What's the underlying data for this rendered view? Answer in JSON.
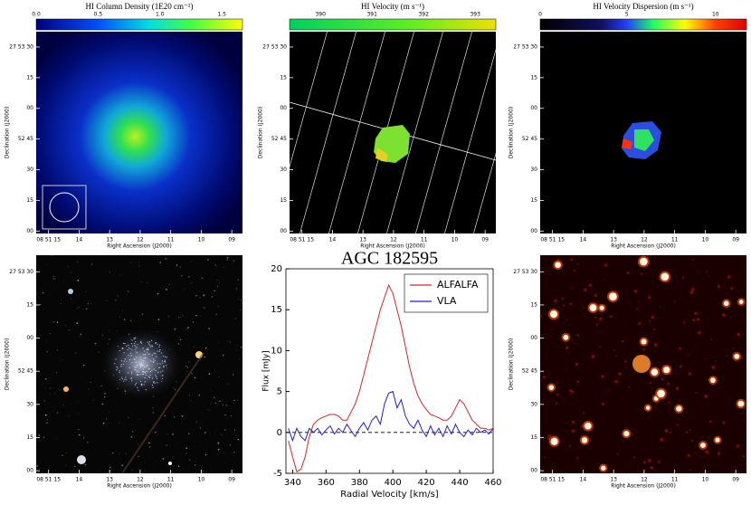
{
  "panels": [
    {
      "title": "HI Column Density (1E20 cm⁻²)",
      "colorbar_ticks": [
        "0.0",
        "0.5",
        "1.0",
        "1.5"
      ]
    },
    {
      "title": "HI Velocity (m s⁻¹)",
      "colorbar_ticks": [
        "390",
        "391",
        "392",
        "393"
      ]
    },
    {
      "title": "HI Velocity Dispersion (m s⁻¹)",
      "colorbar_ticks": [
        "0",
        "5",
        "10"
      ]
    }
  ],
  "sky_axes": {
    "dec_ticks": [
      "27 53 30",
      "15",
      "00",
      "52 45",
      "30",
      "15",
      "00"
    ],
    "ra_ticks": [
      "08 51 15",
      "14",
      "13",
      "12",
      "11",
      "10",
      "09"
    ],
    "ylabel": "Declination (J2000)",
    "xlabel": "Right Ascension (J2000)"
  },
  "chart_data": {
    "type": "line",
    "title": "AGC 182595",
    "xlabel": "Radial Velocity [km/s]",
    "ylabel": "Flux [mJy]",
    "x": [
      337.5,
      340,
      342.5,
      345,
      347.5,
      350,
      352.5,
      355,
      357.5,
      360,
      362.5,
      365,
      367.5,
      370,
      372.5,
      375,
      377.5,
      380,
      382.5,
      385,
      387.5,
      390,
      392.5,
      395,
      397.5,
      400,
      402.5,
      405,
      407.5,
      410,
      412.5,
      415,
      417.5,
      420,
      422.5,
      425,
      427.5,
      430,
      432.5,
      435,
      437.5,
      440,
      442.5,
      445,
      447.5,
      450,
      452.5,
      455,
      457.5,
      460
    ],
    "series": [
      {
        "name": "ALFALFA",
        "color": "#d62728",
        "values": [
          -1,
          -3,
          -4.8,
          -4.5,
          -3,
          -0.5,
          1,
          1.5,
          1.8,
          2,
          2.2,
          2.2,
          2,
          1.5,
          1.5,
          2.5,
          3.5,
          5,
          7,
          9,
          11,
          13,
          15,
          16.5,
          18,
          17,
          15,
          13,
          10.5,
          8,
          6,
          4.5,
          3.5,
          2.8,
          2.2,
          2,
          1.8,
          1.5,
          1.5,
          2,
          3,
          4,
          3.5,
          2.5,
          1.5,
          1,
          0.5,
          0.5,
          0.3,
          0.5
        ]
      },
      {
        "name": "VLA",
        "color": "#1f1fd6",
        "values": [
          0.5,
          -1,
          0.5,
          -0.5,
          -1,
          0.5,
          0,
          0.5,
          -0.3,
          0.3,
          0.8,
          -0.2,
          0.5,
          0,
          1,
          0.2,
          -0.5,
          0.5,
          1.2,
          0.3,
          1.5,
          2,
          1,
          3.5,
          4.8,
          5,
          3,
          4,
          2,
          1,
          0.5,
          1.5,
          0.3,
          -0.5,
          0.8,
          -0.3,
          0.5,
          -0.5,
          0.8,
          -0.2,
          1,
          0,
          -0.5,
          0.3,
          -0.3,
          0.5,
          0,
          0.3,
          -0.2,
          0.5
        ]
      }
    ],
    "xlim": [
      336,
      460
    ],
    "ylim": [
      -5,
      20
    ],
    "xticks": [
      340,
      360,
      380,
      400,
      420,
      440,
      460
    ],
    "yticks": [
      -5,
      0,
      5,
      10,
      15,
      20
    ],
    "legend": "upper right",
    "zero_line": true
  }
}
